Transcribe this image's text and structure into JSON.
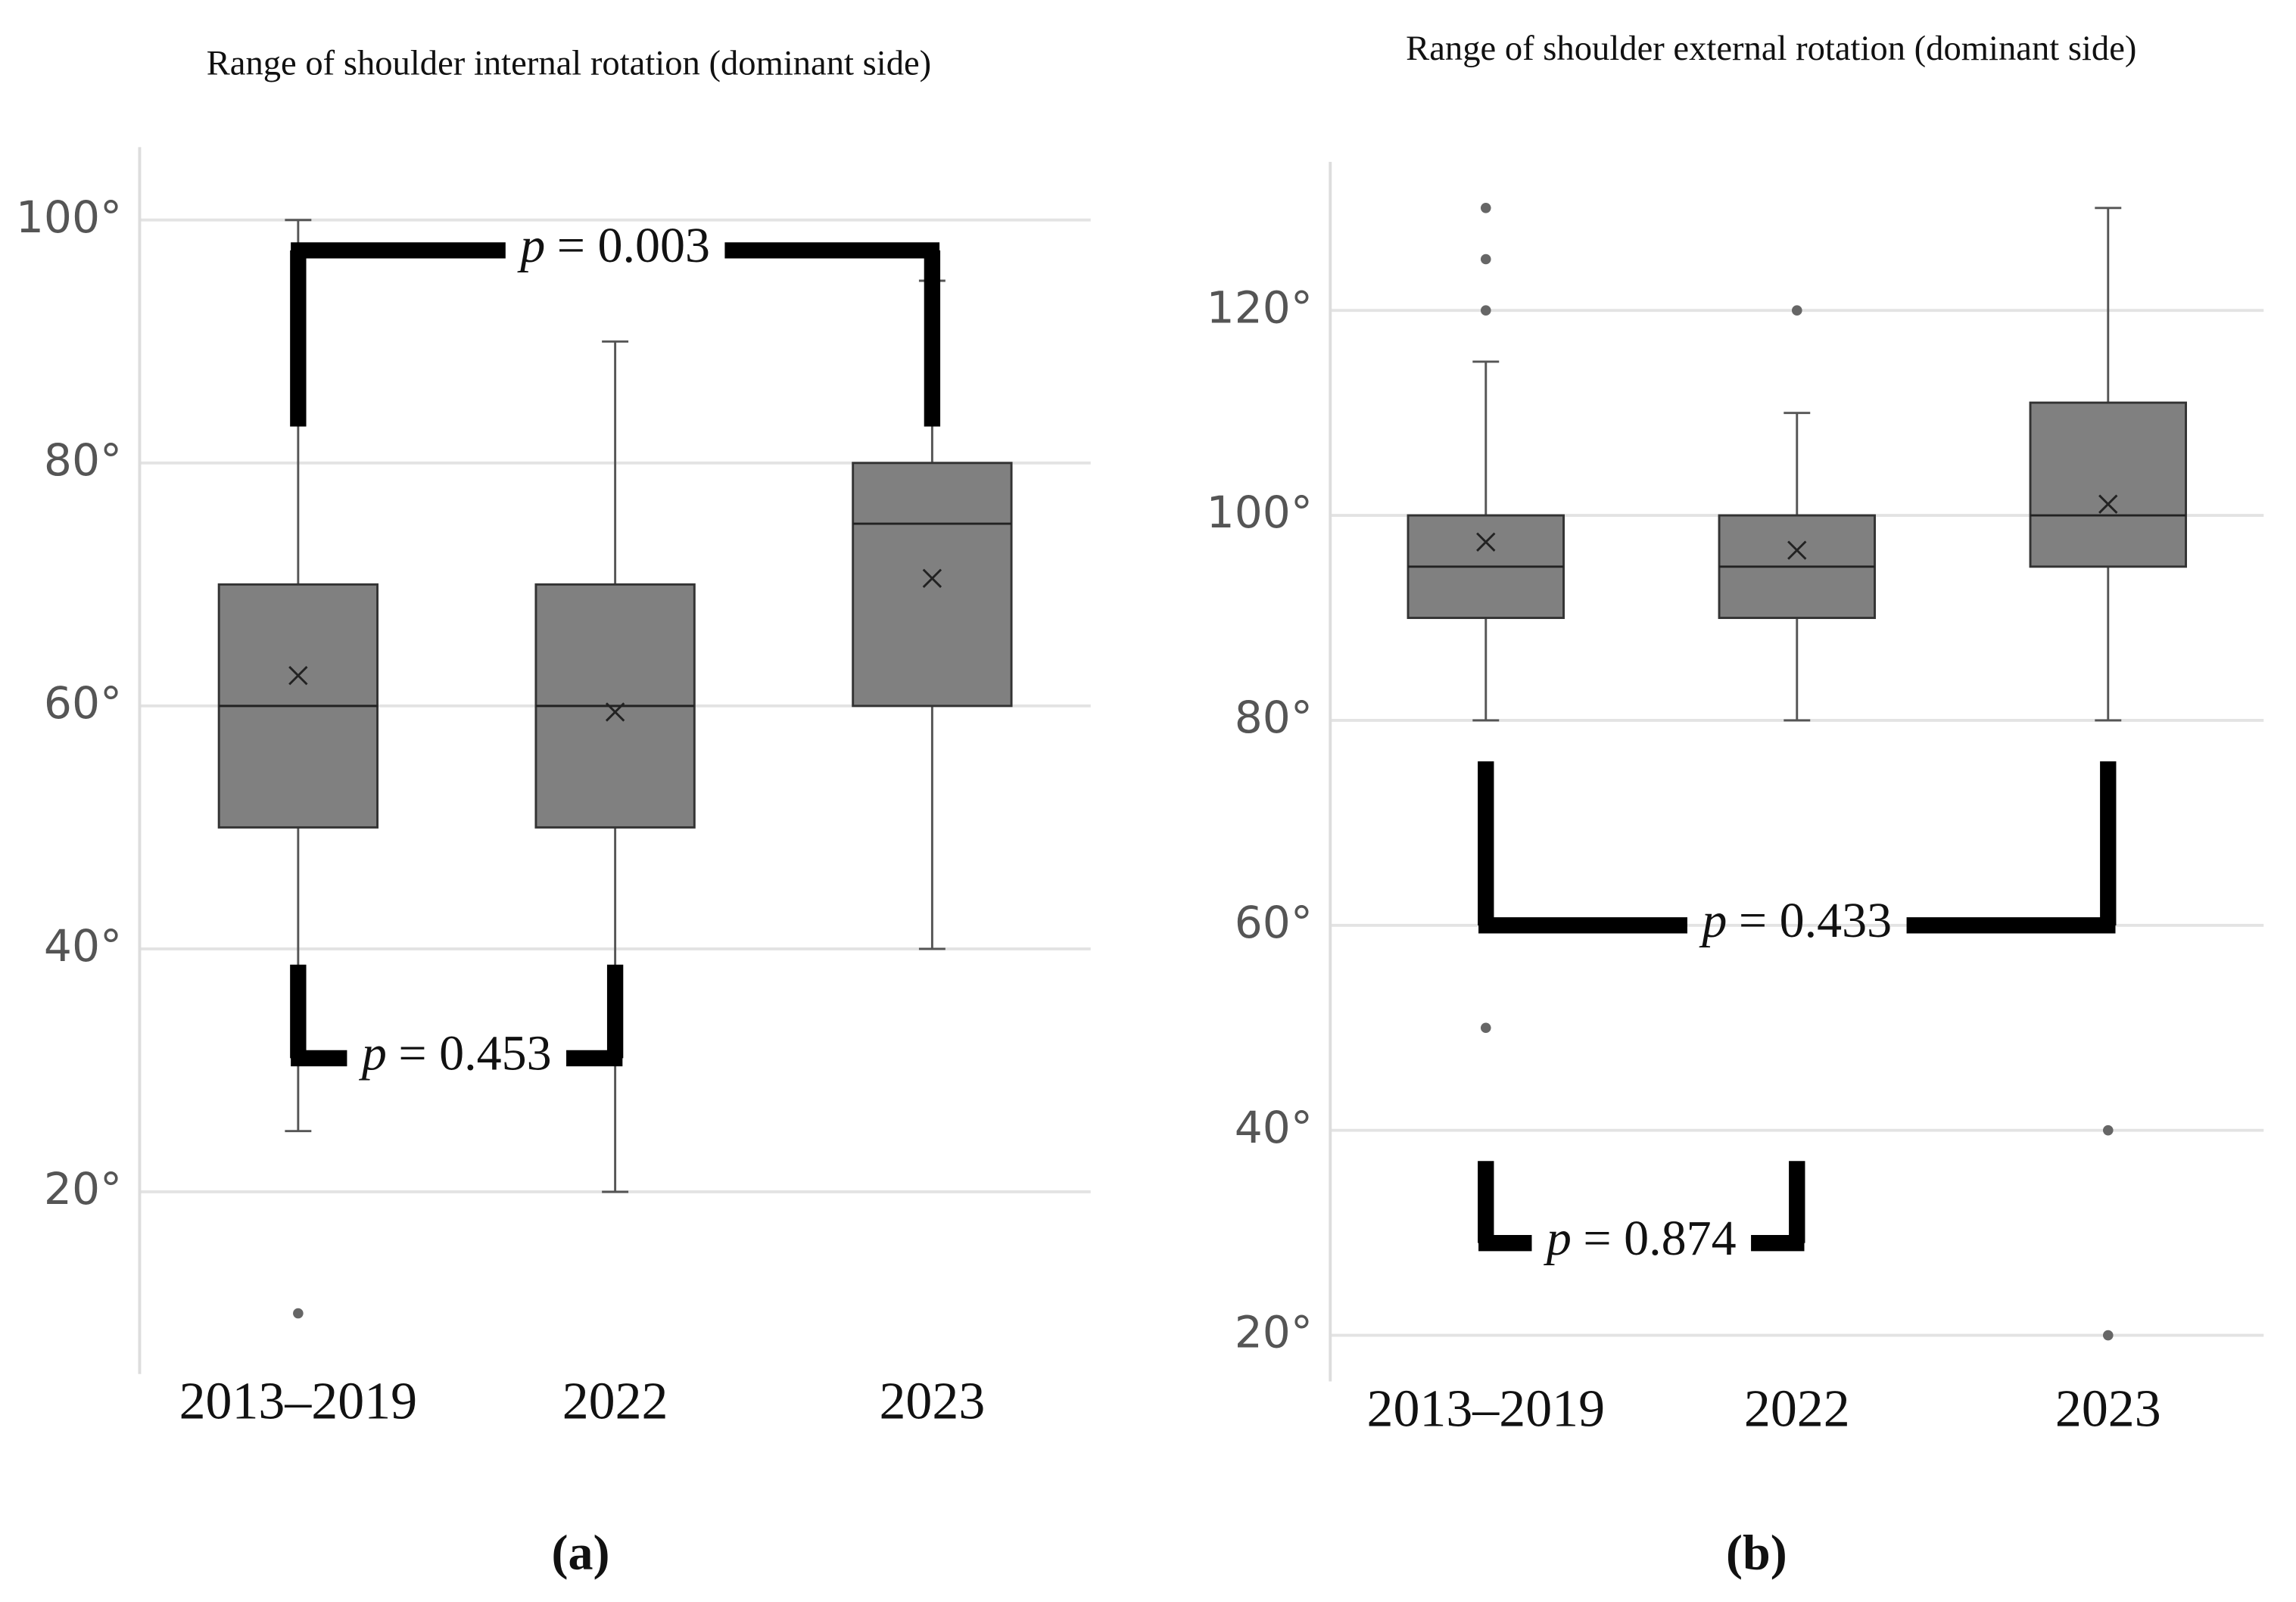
{
  "chart_data": [
    {
      "type": "box",
      "title": "Range of shoulder internal rotation (dominant side)",
      "caption": "(a)",
      "categories": [
        "2013–2019",
        "2022",
        "2023"
      ],
      "series": [
        {
          "color": "#808080",
          "min": [
            25,
            20,
            40
          ],
          "q1": [
            50,
            50,
            60
          ],
          "median": [
            60,
            60,
            75
          ],
          "q3": [
            70,
            70,
            80
          ],
          "max": [
            100,
            90,
            95
          ],
          "mean": [
            62.5,
            59.5,
            70.5
          ],
          "outliers": [
            [
              10
            ],
            [],
            []
          ]
        }
      ],
      "ylim": [
        5,
        106
      ],
      "yticks": [
        {
          "value": 20,
          "label": "20°"
        },
        {
          "value": 40,
          "label": "40°"
        },
        {
          "value": 60,
          "label": "60°"
        },
        {
          "value": 80,
          "label": "80°"
        },
        {
          "value": 100,
          "label": "100°"
        }
      ],
      "grid": true,
      "annotations": [
        {
          "symbol": "p",
          "text": "= 0.003",
          "from": 0,
          "to": 2,
          "y": 97.5,
          "leg_to": 83
        },
        {
          "symbol": "p",
          "text": "= 0.453",
          "from": 0,
          "to": 1,
          "y": 31,
          "leg_to": 38.7
        }
      ]
    },
    {
      "type": "box",
      "title": "Range of shoulder external rotation (dominant side)",
      "caption": "(b)",
      "categories": [
        "2013–2019",
        "2022",
        "2023"
      ],
      "series": [
        {
          "color": "#808080",
          "min": [
            80,
            80,
            80
          ],
          "q1": [
            90,
            90,
            95
          ],
          "median": [
            95,
            95,
            100
          ],
          "q3": [
            100,
            100,
            111
          ],
          "max": [
            115,
            110,
            130
          ],
          "mean": [
            97.4,
            96.6,
            101.1
          ],
          "outliers": [
            [
              130,
              125,
              120,
              50
            ],
            [
              120
            ],
            [
              40,
              20
            ]
          ]
        }
      ],
      "ylim": [
        15.5,
        134.5
      ],
      "yticks": [
        {
          "value": 20,
          "label": "20°"
        },
        {
          "value": 40,
          "label": "40°"
        },
        {
          "value": 60,
          "label": "60°"
        },
        {
          "value": 80,
          "label": "80°"
        },
        {
          "value": 100,
          "label": "100°"
        },
        {
          "value": 120,
          "label": "120°"
        }
      ],
      "grid": true,
      "annotations": [
        {
          "symbol": "p",
          "text": "= 0.433",
          "from": 0,
          "to": 2,
          "y": 60,
          "leg_to": 76
        },
        {
          "symbol": "p",
          "text": "= 0.874",
          "from": 0,
          "to": 1,
          "y": 29,
          "leg_to": 37
        }
      ]
    }
  ]
}
